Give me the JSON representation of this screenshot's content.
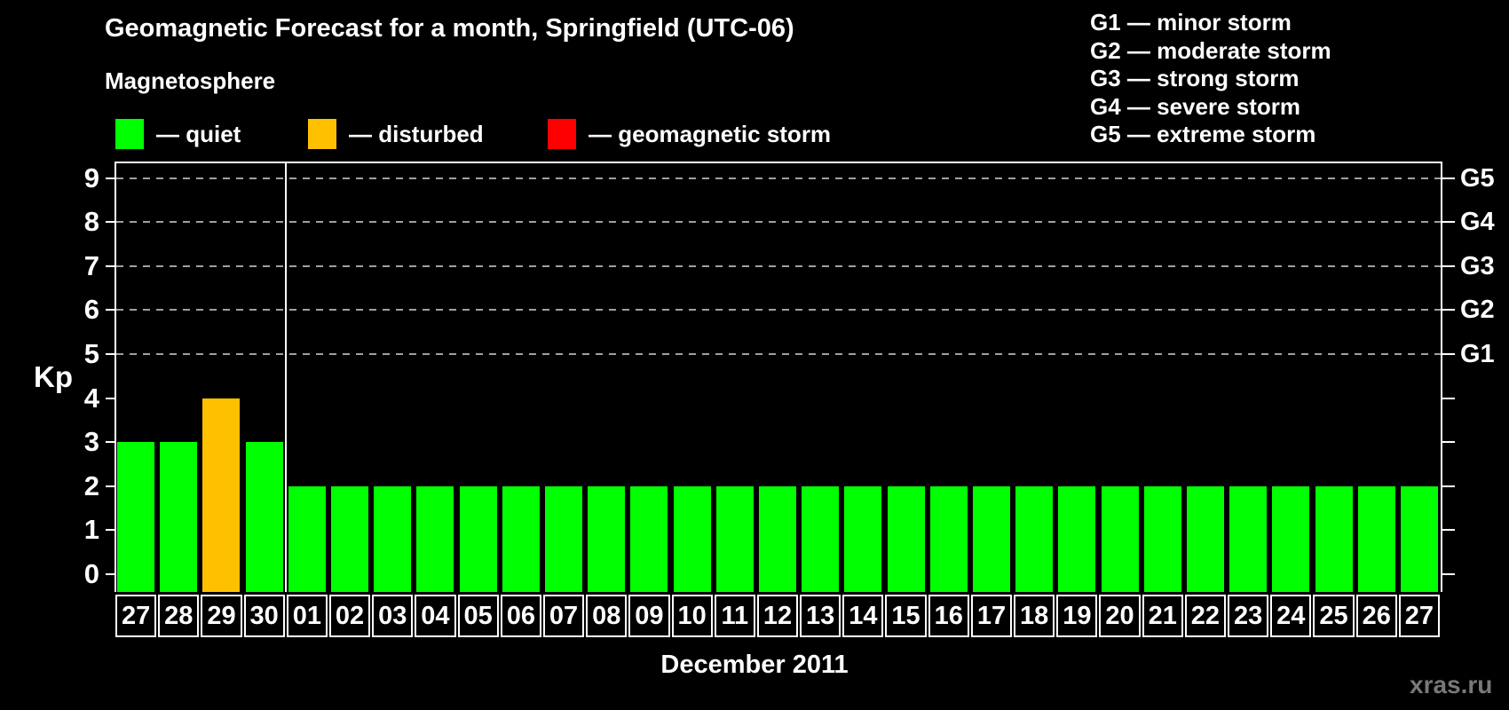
{
  "title": "Geomagnetic Forecast for a month, Springfield (UTC-06)",
  "legend": {
    "heading": "Magnetosphere",
    "items": [
      {
        "name": "quiet",
        "label": "— quiet",
        "color": "#00ff00"
      },
      {
        "name": "disturbed",
        "label": "— disturbed",
        "color": "#ffc000"
      },
      {
        "name": "geomagnetic-storm",
        "label": "— geomagnetic storm",
        "color": "#ff0000"
      }
    ]
  },
  "storm_scale_legend": [
    "G1 — minor storm",
    "G2 — moderate storm",
    "G3 — strong storm",
    "G4 — severe storm",
    "G5 — extreme storm"
  ],
  "chart_data": {
    "type": "bar",
    "title": "Geomagnetic Forecast for a month, Springfield (UTC-06)",
    "xlabel": "December 2011",
    "ylabel": "Kp",
    "ylim": [
      0,
      9.4
    ],
    "grid": "dashed horizontal at Kp 5-9",
    "yticks": [
      "0",
      "1",
      "2",
      "3",
      "4",
      "5",
      "6",
      "7",
      "8",
      "9"
    ],
    "grid_levels": [
      5,
      6,
      7,
      8,
      9
    ],
    "right_axis": [
      {
        "kp": 5,
        "label": "G1"
      },
      {
        "kp": 6,
        "label": "G2"
      },
      {
        "kp": 7,
        "label": "G3"
      },
      {
        "kp": 8,
        "label": "G4"
      },
      {
        "kp": 9,
        "label": "G5"
      }
    ],
    "categories": [
      "27",
      "28",
      "29",
      "30",
      "01",
      "02",
      "03",
      "04",
      "05",
      "06",
      "07",
      "08",
      "09",
      "10",
      "11",
      "12",
      "13",
      "14",
      "15",
      "16",
      "17",
      "18",
      "19",
      "20",
      "21",
      "22",
      "23",
      "24",
      "25",
      "26",
      "27"
    ],
    "values": [
      3,
      3,
      4,
      3,
      2,
      2,
      2,
      2,
      2,
      2,
      2,
      2,
      2,
      2,
      2,
      2,
      2,
      2,
      2,
      2,
      2,
      2,
      2,
      2,
      2,
      2,
      2,
      2,
      2,
      2,
      2
    ],
    "statuses": [
      "quiet",
      "quiet",
      "disturbed",
      "quiet",
      "quiet",
      "quiet",
      "quiet",
      "quiet",
      "quiet",
      "quiet",
      "quiet",
      "quiet",
      "quiet",
      "quiet",
      "quiet",
      "quiet",
      "quiet",
      "quiet",
      "quiet",
      "quiet",
      "quiet",
      "quiet",
      "quiet",
      "quiet",
      "quiet",
      "quiet",
      "quiet",
      "quiet",
      "quiet",
      "quiet",
      "quiet"
    ],
    "month_divider_after_index": 3,
    "legend_position": "top"
  },
  "colors": {
    "background": "#000000",
    "text": "#ffffff",
    "gridline": "#a0a0a0",
    "axis": "#ffffff",
    "watermark": "#787878",
    "status": {
      "quiet": "#00ff00",
      "disturbed": "#ffc000",
      "geomagnetic-storm": "#ff0000"
    }
  },
  "watermark": "xras.ru"
}
